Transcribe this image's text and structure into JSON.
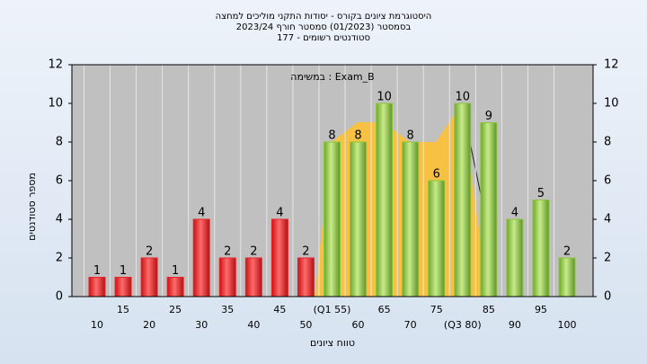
{
  "chart_data": {
    "type": "bar",
    "title": [
      "היסטוגרמת ציונים בקורס - יסודות התקני מוליכים למחצה",
      "בסמסטר  (01/2023)  סמסטר חורף 2023/24",
      "סטודנטים רשומים - 177"
    ],
    "annotation": "במשימה : Exam_B",
    "x_label": "טווח ציונים",
    "y_label": "מספר סטודנטים",
    "categories": [
      "10",
      "15",
      "20",
      "25",
      "30",
      "35",
      "40",
      "45",
      "50",
      "(Q1 55)",
      "60",
      "65",
      "70",
      "75",
      "(Q3 80)",
      "85",
      "90",
      "95",
      "100"
    ],
    "values": [
      1,
      1,
      2,
      1,
      4,
      2,
      2,
      4,
      2,
      8,
      8,
      10,
      8,
      6,
      10,
      9,
      4,
      5,
      2
    ],
    "colors": [
      "#e8262a",
      "#e8262a",
      "#e8262a",
      "#e8262a",
      "#e8262a",
      "#e8262a",
      "#e8262a",
      "#e8262a",
      "#e8262a",
      "#8cc63f",
      "#8cc63f",
      "#8cc63f",
      "#8cc63f",
      "#8cc63f",
      "#8cc63f",
      "#8cc63f",
      "#8cc63f",
      "#8cc63f",
      "#8cc63f"
    ],
    "ylim": [
      0,
      12
    ],
    "yticks": [
      0,
      2,
      4,
      6,
      8,
      10,
      12
    ],
    "grid": true
  }
}
